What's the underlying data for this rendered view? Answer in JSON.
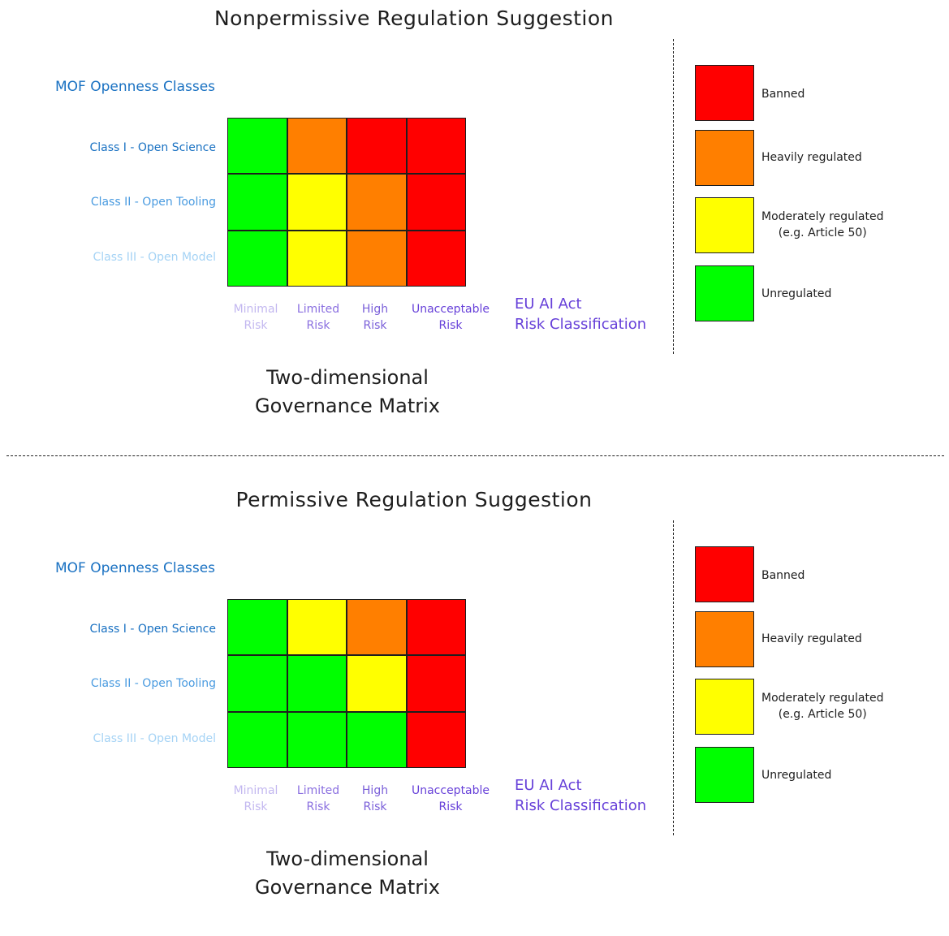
{
  "panels": [
    {
      "title": "Nonpermissive Regulation Suggestion",
      "rows_title": "MOF Openness Classes",
      "rows": [
        "Class I - Open Science",
        "Class II - Open Tooling",
        "Class III - Open Model"
      ],
      "columns": [
        [
          "Minimal",
          "Risk"
        ],
        [
          "Limited",
          "Risk"
        ],
        [
          "High",
          "Risk"
        ],
        [
          "Unacceptable",
          "Risk"
        ]
      ],
      "columns_title": [
        "EU AI Act",
        "Risk Classification"
      ],
      "subtitle": [
        "Two-dimensional",
        "Governance Matrix"
      ],
      "matrix": [
        [
          "unregulated",
          "heavily",
          "banned",
          "banned"
        ],
        [
          "unregulated",
          "moderately",
          "heavily",
          "banned"
        ],
        [
          "unregulated",
          "moderately",
          "heavily",
          "banned"
        ]
      ]
    },
    {
      "title": "Permissive Regulation Suggestion",
      "rows_title": "MOF Openness Classes",
      "rows": [
        "Class I - Open Science",
        "Class II - Open Tooling",
        "Class III - Open Model"
      ],
      "columns": [
        [
          "Minimal",
          "Risk"
        ],
        [
          "Limited",
          "Risk"
        ],
        [
          "High",
          "Risk"
        ],
        [
          "Unacceptable",
          "Risk"
        ]
      ],
      "columns_title": [
        "EU AI Act",
        "Risk Classification"
      ],
      "subtitle": [
        "Two-dimensional",
        "Governance Matrix"
      ],
      "matrix": [
        [
          "unregulated",
          "moderately",
          "heavily",
          "banned"
        ],
        [
          "unregulated",
          "unregulated",
          "moderately",
          "banned"
        ],
        [
          "unregulated",
          "unregulated",
          "unregulated",
          "banned"
        ]
      ]
    }
  ],
  "legend": [
    {
      "key": "banned",
      "lines": [
        "Banned"
      ],
      "color": "#ff0000"
    },
    {
      "key": "heavily",
      "lines": [
        "Heavily regulated"
      ],
      "color": "#ff7f00"
    },
    {
      "key": "moderately",
      "lines": [
        "Moderately regulated",
        "(e.g. Article 50)"
      ],
      "color": "#ffff00"
    },
    {
      "key": "unregulated",
      "lines": [
        "Unregulated"
      ],
      "color": "#00ff00"
    }
  ]
}
